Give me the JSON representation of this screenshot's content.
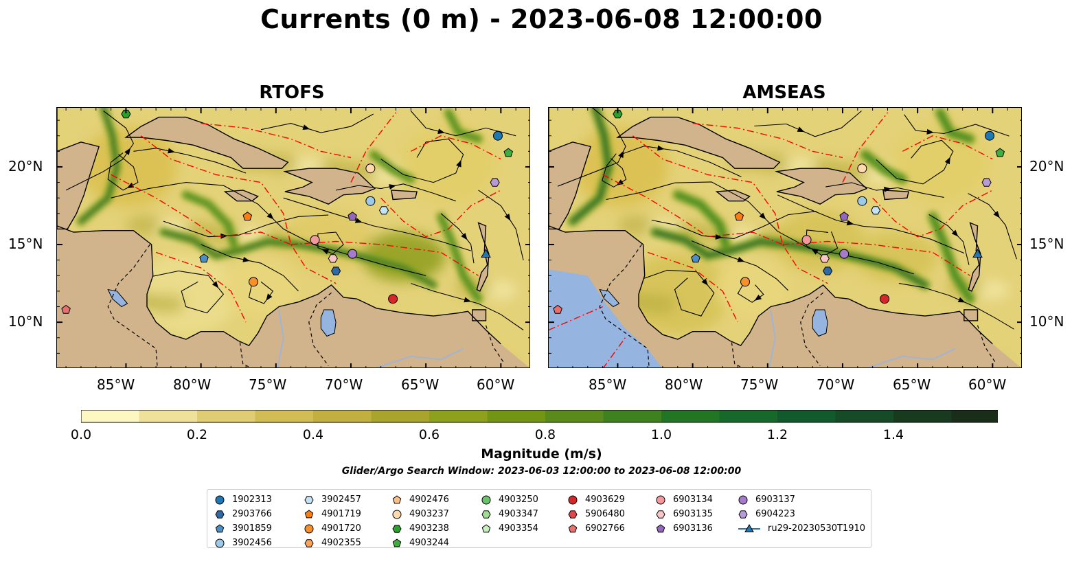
{
  "title": "Currents (0 m) - 2023-06-08 12:00:00",
  "panels": [
    {
      "title": "RTOFS"
    },
    {
      "title": "AMSEAS"
    }
  ],
  "axes": {
    "lon_labels": [
      "85°W",
      "80°W",
      "75°W",
      "70°W",
      "65°W",
      "60°W"
    ],
    "lat_labels": [
      "20°N",
      "15°N",
      "10°N"
    ]
  },
  "colorbar": {
    "label": "Magnitude (m/s)",
    "ticks": [
      "0.0",
      "0.2",
      "0.4",
      "0.6",
      "0.8",
      "1.0",
      "1.2",
      "1.4"
    ],
    "colors": [
      "#fdf7c4",
      "#efe09a",
      "#e0cc72",
      "#d2bd55",
      "#c1b03f",
      "#a9a52c",
      "#8ea11c",
      "#729614",
      "#5a8a1a",
      "#3f8021",
      "#237526",
      "#17692b",
      "#125a2b",
      "#174a26",
      "#183b20",
      "#1a2d19"
    ]
  },
  "search_window": "Glider/Argo Search Window: 2023-06-03 12:00:00 to 2023-06-08 12:00:00",
  "colors": {
    "land": "#d2b48c",
    "ocean_dark_blue": "#95b4df",
    "eez_line": "#ff0000"
  },
  "legend": [
    [
      {
        "label": "1902313",
        "marker": "circle",
        "color": "#1f77b4"
      },
      {
        "label": "2903766",
        "marker": "hexagon",
        "color": "#2e6aa8"
      },
      {
        "label": "3901859",
        "marker": "pentagon",
        "color": "#4c8fc4"
      },
      {
        "label": "3902456",
        "marker": "circle",
        "color": "#9ecae9"
      }
    ],
    [
      {
        "label": "3902457",
        "marker": "hexagon",
        "color": "#c6e2f6"
      },
      {
        "label": "4901719",
        "marker": "pentagon",
        "color": "#ff7f0e"
      },
      {
        "label": "4901720",
        "marker": "circle",
        "color": "#f5902a"
      },
      {
        "label": "4902355",
        "marker": "hexagon",
        "color": "#fda35a"
      }
    ],
    [
      {
        "label": "4902476",
        "marker": "pentagon",
        "color": "#fdbf86"
      },
      {
        "label": "4903237",
        "marker": "circle",
        "color": "#fdd9b0"
      },
      {
        "label": "4903238",
        "marker": "hexagon",
        "color": "#2ca02c"
      },
      {
        "label": "4903244",
        "marker": "pentagon",
        "color": "#3fae3f"
      }
    ],
    [
      {
        "label": "4903250",
        "marker": "circle",
        "color": "#6cc36c"
      },
      {
        "label": "4903347",
        "marker": "hexagon",
        "color": "#a3dd95"
      },
      {
        "label": "4903354",
        "marker": "pentagon",
        "color": "#c8efc0"
      }
    ],
    [
      {
        "label": "4903629",
        "marker": "circle",
        "color": "#d62728"
      },
      {
        "label": "5906480",
        "marker": "hexagon",
        "color": "#e0464a"
      },
      {
        "label": "6902766",
        "marker": "pentagon",
        "color": "#e8706f"
      }
    ],
    [
      {
        "label": "6903134",
        "marker": "circle",
        "color": "#f4999b"
      },
      {
        "label": "6903135",
        "marker": "hexagon",
        "color": "#f9c6c7"
      },
      {
        "label": "6903136",
        "marker": "pentagon",
        "color": "#9467bd"
      }
    ],
    [
      {
        "label": "6903137",
        "marker": "circle",
        "color": "#a47ccb"
      },
      {
        "label": "6904223",
        "marker": "hexagon",
        "color": "#b79ad8"
      },
      {
        "label": "ru29-20230530T1910",
        "marker": "triangle-line",
        "color": "#1f77b4"
      }
    ]
  ],
  "platforms": [
    {
      "id": "1902313",
      "lon": -60.2,
      "lat": 22.0
    },
    {
      "id": "4903244",
      "lon": -59.5,
      "lat": 20.9
    },
    {
      "id": "4903238",
      "lon": -85.0,
      "lat": 23.4
    },
    {
      "id": "4903237",
      "lon": -68.7,
      "lat": 19.9
    },
    {
      "id": "6904223",
      "lon": -60.4,
      "lat": 19.0
    },
    {
      "id": "3902456",
      "lon": -68.7,
      "lat": 17.8
    },
    {
      "id": "3902457",
      "lon": -67.8,
      "lat": 17.2
    },
    {
      "id": "6903136",
      "lon": -69.9,
      "lat": 16.8
    },
    {
      "id": "4901719",
      "lon": -76.9,
      "lat": 16.8
    },
    {
      "id": "6903134",
      "lon": -72.4,
      "lat": 15.3
    },
    {
      "id": "3901859",
      "lon": -79.8,
      "lat": 14.1
    },
    {
      "id": "6903135",
      "lon": -71.2,
      "lat": 14.1
    },
    {
      "id": "6903137",
      "lon": -69.9,
      "lat": 14.4
    },
    {
      "id": "2903766",
      "lon": -71.0,
      "lat": 13.3
    },
    {
      "id": "4901720",
      "lon": -76.5,
      "lat": 12.6
    },
    {
      "id": "4903629",
      "lon": -67.2,
      "lat": 11.5
    },
    {
      "id": "ru29-20230530T1910",
      "lon": -61.0,
      "lat": 14.4
    },
    {
      "id": "6902766",
      "lon": -89.0,
      "lat": 10.8
    }
  ]
}
